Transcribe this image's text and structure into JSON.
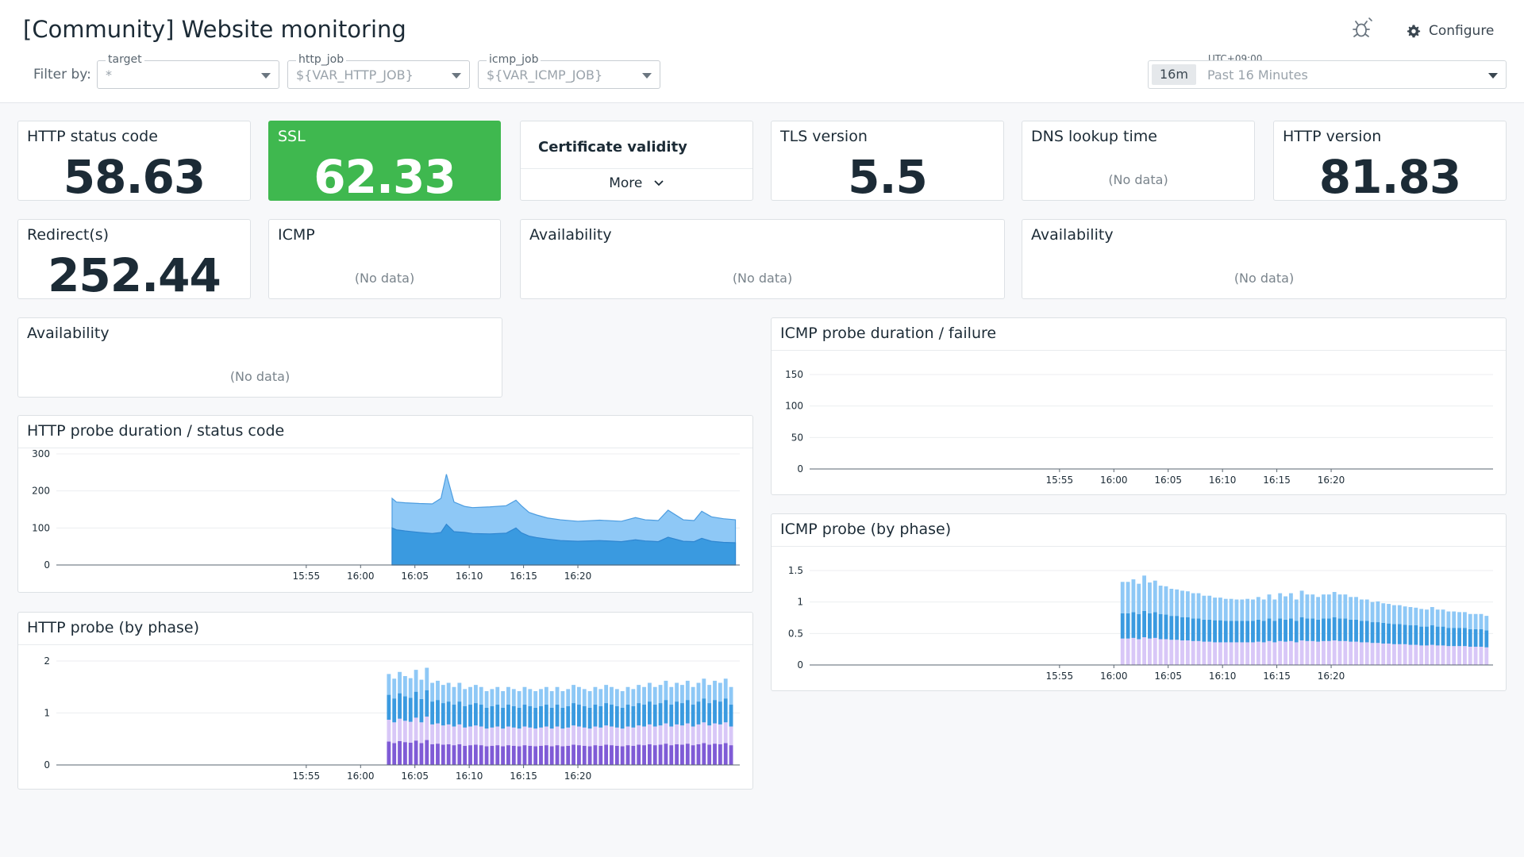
{
  "header": {
    "title": "[Community] Website monitoring",
    "filter_label": "Filter by:",
    "configure_label": "Configure",
    "timezone": "UTC+09:00",
    "time_badge": "16m",
    "time_range": "Past 16 Minutes"
  },
  "filters": [
    {
      "label": "target",
      "value": "*"
    },
    {
      "label": "http_job",
      "value": "${VAR_HTTP_JOB}"
    },
    {
      "label": "icmp_job",
      "value": "${VAR_ICMP_JOB}"
    }
  ],
  "colors": {
    "accent": "#3fb84f",
    "series_light": "#8ec8f6",
    "series_mid": "#3a9ae0",
    "series_lavender": "#d8c7f7",
    "series_purple": "#7f5bd6"
  },
  "icons": {
    "theme": "bug-icon",
    "configure": "gear-icon",
    "more": "chevron-down-icon",
    "dropdown": "caret-down-icon"
  },
  "panels": {
    "http_status": {
      "title": "HTTP status code",
      "value": "58.63"
    },
    "ssl": {
      "title": "SSL",
      "value": "62.33"
    },
    "cert": {
      "title": "Certificate validity",
      "more": "More"
    },
    "tls": {
      "title": "TLS version",
      "value": "5.5"
    },
    "dns": {
      "title": "DNS lookup time",
      "nodata": "(No data)"
    },
    "http_version": {
      "title": "HTTP version",
      "value": "81.83"
    },
    "redirects": {
      "title": "Redirect(s)",
      "value": "252.44"
    },
    "icmp": {
      "title": "ICMP",
      "nodata": "(No data)"
    },
    "availability_1": {
      "title": "Availability",
      "nodata": "(No data)"
    },
    "availability_2": {
      "title": "Availability",
      "nodata": "(No data)"
    },
    "availability_3": {
      "title": "Availability",
      "nodata": "(No data)"
    },
    "http_duration": {
      "title": "HTTP probe duration / status code"
    },
    "http_phase": {
      "title": "HTTP probe (by phase)"
    },
    "icmp_duration": {
      "title": "ICMP probe duration / failure"
    },
    "icmp_phase": {
      "title": "ICMP probe (by phase)"
    }
  },
  "chart_data": [
    {
      "id": "http_duration",
      "type": "area",
      "title": "HTTP probe duration / status code",
      "x_ticks": [
        "15:55",
        "16:00",
        "16:05",
        "16:10",
        "16:15",
        "16:20"
      ],
      "x_domain": [
        -28,
        34.9
      ],
      "ylim": [
        0,
        300
      ],
      "y_ticks": [
        0,
        100,
        200,
        300
      ],
      "x": [
        2.9,
        3.3,
        4.1,
        5.4,
        6.6,
        7.4,
        7.9,
        8.6,
        9.6,
        10.3,
        11.9,
        13.4,
        14.3,
        14.8,
        15.5,
        16.2,
        17.2,
        18.4,
        20.0,
        22.0,
        24.0,
        25.3,
        26.2,
        26.8,
        27.4,
        28.3,
        29.7,
        30.7,
        31.4,
        32.3,
        33.4,
        34.5
      ],
      "series": [
        {
          "values": [
            180,
            170,
            168,
            166,
            165,
            180,
            245,
            170,
            158,
            155,
            157,
            160,
            175,
            160,
            142,
            135,
            127,
            122,
            118,
            121,
            118,
            128,
            122,
            121,
            120,
            148,
            122,
            120,
            145,
            130,
            125,
            122
          ]
        },
        {
          "values": [
            100,
            95,
            92,
            88,
            85,
            88,
            110,
            90,
            88,
            85,
            84,
            86,
            100,
            87,
            78,
            74,
            70,
            66,
            64,
            66,
            63,
            68,
            65,
            64,
            63,
            75,
            64,
            63,
            72,
            64,
            61,
            60
          ]
        }
      ]
    },
    {
      "id": "http_phase",
      "type": "bar",
      "title": "HTTP probe (by phase)",
      "x_ticks": [
        "15:55",
        "16:00",
        "16:05",
        "16:10",
        "16:15",
        "16:20"
      ],
      "x_domain": [
        -28,
        34.9
      ],
      "ylim": [
        0,
        2
      ],
      "y_ticks": [
        0,
        1,
        2
      ],
      "x": [
        2.6,
        3.1,
        3.6,
        4.1,
        4.6,
        5.1,
        5.6,
        6.1,
        6.6,
        7.1,
        7.6,
        8.1,
        8.6,
        9.1,
        9.6,
        10.1,
        10.6,
        11.1,
        11.6,
        12.1,
        12.6,
        13.1,
        13.6,
        14.1,
        14.6,
        15.1,
        15.6,
        16.1,
        16.6,
        17.1,
        17.6,
        18.1,
        18.6,
        19.1,
        19.6,
        20.1,
        20.6,
        21.1,
        21.6,
        22.1,
        22.6,
        23.1,
        23.6,
        24.1,
        24.6,
        25.1,
        25.6,
        26.1,
        26.6,
        27.1,
        27.6,
        28.1,
        28.6,
        29.1,
        29.6,
        30.1,
        30.6,
        31.1,
        31.6,
        32.1,
        32.6,
        33.1,
        33.6,
        34.1
      ],
      "series": [
        {
          "values": [
            0.45,
            0.42,
            0.46,
            0.44,
            0.43,
            0.47,
            0.42,
            0.48,
            0.4,
            0.41,
            0.39,
            0.4,
            0.38,
            0.4,
            0.37,
            0.38,
            0.39,
            0.38,
            0.36,
            0.37,
            0.38,
            0.36,
            0.38,
            0.37,
            0.36,
            0.38,
            0.37,
            0.36,
            0.37,
            0.38,
            0.36,
            0.38,
            0.36,
            0.37,
            0.39,
            0.38,
            0.37,
            0.36,
            0.38,
            0.37,
            0.39,
            0.38,
            0.37,
            0.36,
            0.38,
            0.37,
            0.39,
            0.38,
            0.4,
            0.38,
            0.39,
            0.41,
            0.38,
            0.4,
            0.39,
            0.41,
            0.38,
            0.4,
            0.42,
            0.39,
            0.41,
            0.4,
            0.42,
            0.38
          ]
        },
        {
          "values": [
            0.42,
            0.4,
            0.43,
            0.41,
            0.4,
            0.44,
            0.4,
            0.45,
            0.38,
            0.39,
            0.37,
            0.38,
            0.36,
            0.38,
            0.35,
            0.36,
            0.37,
            0.36,
            0.34,
            0.35,
            0.36,
            0.34,
            0.36,
            0.35,
            0.34,
            0.36,
            0.35,
            0.34,
            0.35,
            0.36,
            0.34,
            0.36,
            0.34,
            0.35,
            0.37,
            0.36,
            0.35,
            0.34,
            0.36,
            0.35,
            0.37,
            0.36,
            0.35,
            0.34,
            0.36,
            0.35,
            0.37,
            0.36,
            0.38,
            0.36,
            0.37,
            0.39,
            0.36,
            0.38,
            0.37,
            0.39,
            0.36,
            0.38,
            0.4,
            0.37,
            0.39,
            0.38,
            0.4,
            0.36
          ]
        },
        {
          "values": [
            0.48,
            0.46,
            0.49,
            0.47,
            0.46,
            0.5,
            0.45,
            0.51,
            0.44,
            0.45,
            0.43,
            0.44,
            0.42,
            0.44,
            0.41,
            0.42,
            0.43,
            0.42,
            0.4,
            0.41,
            0.42,
            0.4,
            0.42,
            0.41,
            0.4,
            0.42,
            0.41,
            0.4,
            0.41,
            0.42,
            0.4,
            0.42,
            0.4,
            0.41,
            0.43,
            0.42,
            0.41,
            0.4,
            0.42,
            0.41,
            0.43,
            0.42,
            0.41,
            0.4,
            0.42,
            0.41,
            0.43,
            0.42,
            0.44,
            0.42,
            0.43,
            0.45,
            0.42,
            0.44,
            0.43,
            0.45,
            0.42,
            0.44,
            0.46,
            0.43,
            0.45,
            0.44,
            0.46,
            0.42
          ]
        },
        {
          "values": [
            0.4,
            0.38,
            0.41,
            0.39,
            0.38,
            0.42,
            0.37,
            0.43,
            0.36,
            0.37,
            0.35,
            0.36,
            0.34,
            0.36,
            0.33,
            0.34,
            0.35,
            0.34,
            0.32,
            0.33,
            0.34,
            0.32,
            0.34,
            0.33,
            0.32,
            0.34,
            0.33,
            0.32,
            0.33,
            0.34,
            0.32,
            0.34,
            0.32,
            0.33,
            0.35,
            0.34,
            0.33,
            0.32,
            0.34,
            0.33,
            0.35,
            0.34,
            0.33,
            0.32,
            0.34,
            0.33,
            0.35,
            0.34,
            0.36,
            0.34,
            0.35,
            0.37,
            0.34,
            0.36,
            0.35,
            0.37,
            0.34,
            0.36,
            0.38,
            0.35,
            0.37,
            0.36,
            0.38,
            0.34
          ]
        }
      ]
    },
    {
      "id": "icmp_duration",
      "type": "line",
      "title": "ICMP probe duration / failure",
      "x_ticks": [
        "15:55",
        "16:00",
        "16:05",
        "16:10",
        "16:15",
        "16:20"
      ],
      "x_domain": [
        -28,
        34.9
      ],
      "ylim": [
        0,
        150
      ],
      "y_ticks": [
        0,
        50,
        100,
        150
      ],
      "series": []
    },
    {
      "id": "icmp_phase",
      "type": "bar",
      "title": "ICMP probe (by phase)",
      "x_ticks": [
        "15:55",
        "16:00",
        "16:05",
        "16:10",
        "16:15",
        "16:20"
      ],
      "x_domain": [
        -28,
        34.9
      ],
      "ylim": [
        0,
        1.5
      ],
      "y_ticks": [
        0,
        0.5,
        1,
        1.5
      ],
      "x": [
        0.8,
        1.3,
        1.8,
        2.3,
        2.8,
        3.3,
        3.8,
        4.3,
        4.8,
        5.3,
        5.8,
        6.3,
        6.8,
        7.3,
        7.8,
        8.3,
        8.8,
        9.3,
        9.8,
        10.3,
        10.8,
        11.3,
        11.8,
        12.3,
        12.8,
        13.3,
        13.8,
        14.3,
        14.8,
        15.3,
        15.8,
        16.3,
        16.8,
        17.3,
        17.8,
        18.3,
        18.8,
        19.3,
        19.8,
        20.3,
        20.8,
        21.3,
        21.8,
        22.3,
        22.8,
        23.3,
        23.8,
        24.3,
        24.8,
        25.3,
        25.8,
        26.3,
        26.8,
        27.3,
        27.8,
        28.3,
        28.8,
        29.3,
        29.8,
        30.3,
        30.8,
        31.3,
        31.8,
        32.3,
        32.8,
        33.3,
        33.8,
        34.3
      ],
      "series": [
        {
          "values": [
            0.42,
            0.42,
            0.43,
            0.41,
            0.44,
            0.42,
            0.43,
            0.41,
            0.41,
            0.4,
            0.4,
            0.39,
            0.39,
            0.38,
            0.38,
            0.37,
            0.37,
            0.36,
            0.36,
            0.36,
            0.36,
            0.36,
            0.36,
            0.36,
            0.36,
            0.37,
            0.36,
            0.38,
            0.36,
            0.38,
            0.37,
            0.38,
            0.36,
            0.39,
            0.38,
            0.38,
            0.37,
            0.38,
            0.38,
            0.39,
            0.38,
            0.38,
            0.37,
            0.37,
            0.36,
            0.36,
            0.35,
            0.35,
            0.34,
            0.34,
            0.33,
            0.33,
            0.33,
            0.32,
            0.32,
            0.31,
            0.31,
            0.32,
            0.31,
            0.31,
            0.3,
            0.3,
            0.3,
            0.3,
            0.29,
            0.29,
            0.29,
            0.28
          ]
        },
        {
          "values": [
            0.4,
            0.4,
            0.41,
            0.4,
            0.42,
            0.4,
            0.41,
            0.4,
            0.39,
            0.38,
            0.38,
            0.37,
            0.37,
            0.36,
            0.36,
            0.35,
            0.35,
            0.35,
            0.35,
            0.34,
            0.34,
            0.34,
            0.34,
            0.34,
            0.34,
            0.35,
            0.34,
            0.36,
            0.34,
            0.36,
            0.35,
            0.36,
            0.34,
            0.37,
            0.36,
            0.36,
            0.35,
            0.36,
            0.36,
            0.37,
            0.36,
            0.36,
            0.35,
            0.35,
            0.34,
            0.34,
            0.33,
            0.33,
            0.33,
            0.32,
            0.32,
            0.32,
            0.31,
            0.31,
            0.31,
            0.3,
            0.3,
            0.31,
            0.3,
            0.3,
            0.29,
            0.29,
            0.29,
            0.29,
            0.28,
            0.28,
            0.28,
            0.27
          ]
        },
        {
          "values": [
            0.5,
            0.5,
            0.52,
            0.48,
            0.56,
            0.49,
            0.5,
            0.45,
            0.45,
            0.43,
            0.42,
            0.42,
            0.41,
            0.4,
            0.4,
            0.38,
            0.38,
            0.36,
            0.36,
            0.35,
            0.35,
            0.34,
            0.34,
            0.35,
            0.34,
            0.36,
            0.34,
            0.38,
            0.34,
            0.4,
            0.37,
            0.4,
            0.34,
            0.42,
            0.38,
            0.38,
            0.36,
            0.38,
            0.38,
            0.4,
            0.38,
            0.38,
            0.36,
            0.36,
            0.34,
            0.34,
            0.32,
            0.33,
            0.31,
            0.31,
            0.3,
            0.3,
            0.29,
            0.29,
            0.28,
            0.28,
            0.27,
            0.29,
            0.27,
            0.27,
            0.26,
            0.26,
            0.25,
            0.25,
            0.24,
            0.24,
            0.24,
            0.23
          ]
        }
      ]
    }
  ]
}
